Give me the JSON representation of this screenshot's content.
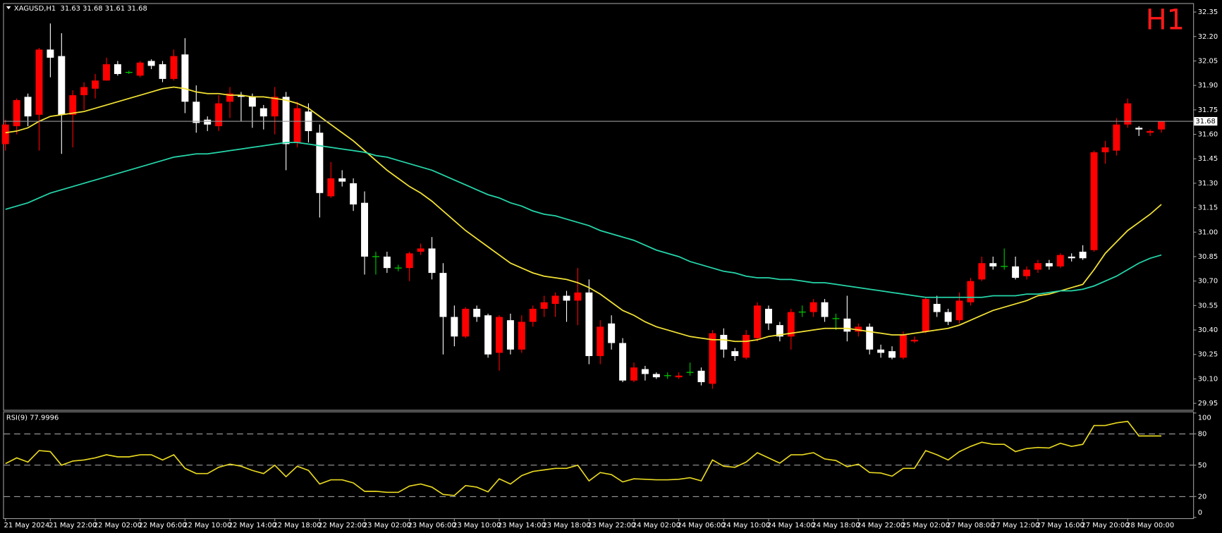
{
  "chart_data": [
    {
      "type": "candlestick",
      "title": "XAGUSD,H1  31.63 31.68 31.61 31.68",
      "annotation": "H1",
      "categories": [
        "21 May 2024",
        null,
        null,
        null,
        "21 May 22:00",
        null,
        null,
        null,
        "22 May 02:00",
        null,
        null,
        null,
        "22 May 06:00",
        null,
        null,
        null,
        "22 May 10:00",
        null,
        null,
        null,
        "22 May 14:00",
        null,
        null,
        null,
        "22 May 18:00",
        null,
        null,
        null,
        "22 May 22:00",
        null,
        null,
        null,
        "23 May 02:00",
        null,
        null,
        null,
        "23 May 06:00",
        null,
        null,
        null,
        "23 May 10:00",
        null,
        null,
        null,
        "23 May 14:00",
        null,
        null,
        null,
        "23 May 18:00",
        null,
        null,
        null,
        "23 May 22:00",
        null,
        null,
        null,
        "24 May 02:00",
        null,
        null,
        null,
        "24 May 06:00",
        null,
        null,
        null,
        "24 May 10:00",
        null,
        null,
        null,
        "24 May 14:00",
        null,
        null,
        null,
        "24 May 18:00",
        null,
        null,
        null,
        "24 May 22:00",
        null,
        null,
        null,
        "25 May 02:00",
        null,
        null,
        null,
        "27 May 08:00",
        null,
        null,
        null,
        "27 May 12:00",
        null,
        null,
        null,
        "27 May 16:00",
        null,
        null,
        null,
        "27 May 20:00",
        null,
        null,
        null,
        "28 May 00:00",
        null,
        null,
        null
      ],
      "open": [
        31.54,
        31.65,
        31.83,
        31.72,
        32.12,
        32.08,
        31.72,
        31.84,
        31.88,
        31.93,
        32.03,
        31.98,
        31.96,
        32.05,
        32.03,
        31.94,
        32.09,
        31.8,
        31.69,
        31.65,
        31.8,
        31.84,
        31.83,
        31.76,
        31.71,
        31.83,
        31.55,
        31.74,
        31.61,
        31.22,
        31.33,
        31.3,
        31.18,
        30.85,
        30.85,
        30.78,
        30.78,
        30.88,
        30.9,
        30.75,
        30.48,
        30.36,
        30.53,
        30.49,
        30.26,
        30.46,
        30.28,
        30.45,
        30.53,
        30.56,
        30.61,
        30.58,
        30.63,
        30.24,
        30.44,
        30.32,
        30.09,
        30.16,
        30.13,
        30.12,
        30.11,
        30.14,
        30.15,
        30.07,
        30.37,
        30.27,
        30.23,
        30.35,
        30.53,
        30.43,
        30.36,
        30.51,
        30.51,
        30.57,
        30.47,
        30.47,
        30.39,
        30.42,
        30.28,
        30.27,
        30.23,
        30.33,
        30.39,
        30.56,
        30.51,
        30.46,
        30.57,
        30.71,
        30.81,
        30.79,
        30.79,
        30.73,
        30.77,
        30.81,
        30.79,
        30.85,
        30.88,
        30.89,
        31.49,
        31.5,
        31.66,
        31.64,
        31.61,
        31.63
      ],
      "high": [
        31.69,
        31.82,
        31.85,
        32.13,
        32.28,
        32.22,
        31.87,
        31.92,
        31.97,
        32.07,
        32.05,
        31.99,
        32.05,
        32.06,
        32.05,
        32.12,
        32.19,
        31.9,
        31.71,
        31.84,
        31.89,
        31.86,
        31.85,
        31.78,
        31.89,
        31.86,
        31.8,
        31.79,
        31.66,
        31.43,
        31.38,
        31.33,
        31.25,
        30.88,
        30.88,
        30.8,
        30.88,
        30.93,
        30.97,
        30.81,
        30.55,
        30.54,
        30.55,
        30.5,
        30.49,
        30.5,
        30.49,
        30.55,
        30.61,
        30.63,
        30.64,
        30.78,
        30.71,
        30.46,
        30.49,
        30.35,
        30.2,
        30.18,
        30.14,
        30.14,
        30.14,
        30.2,
        30.17,
        30.4,
        30.41,
        30.29,
        30.4,
        30.57,
        30.55,
        30.45,
        30.53,
        30.55,
        30.59,
        30.59,
        30.5,
        30.61,
        30.44,
        30.44,
        30.31,
        30.3,
        30.39,
        30.36,
        30.6,
        30.61,
        30.53,
        30.63,
        30.72,
        30.85,
        30.85,
        30.9,
        30.85,
        30.79,
        30.83,
        30.83,
        30.87,
        30.87,
        30.92,
        31.5,
        31.56,
        31.7,
        31.82,
        31.65,
        31.63,
        31.68
      ],
      "low": [
        31.5,
        31.6,
        31.65,
        31.5,
        31.95,
        31.48,
        31.52,
        31.75,
        31.82,
        31.93,
        31.96,
        31.97,
        31.95,
        32.0,
        31.92,
        31.93,
        31.73,
        31.61,
        31.62,
        31.62,
        31.7,
        31.68,
        31.64,
        31.63,
        31.6,
        31.38,
        31.52,
        31.55,
        31.09,
        31.21,
        31.28,
        31.13,
        30.74,
        30.74,
        30.75,
        30.76,
        30.7,
        30.86,
        30.71,
        30.25,
        30.3,
        30.35,
        30.45,
        30.23,
        30.15,
        30.25,
        30.26,
        30.42,
        30.48,
        30.48,
        30.45,
        30.43,
        30.19,
        30.19,
        30.28,
        30.08,
        30.08,
        30.09,
        30.1,
        30.1,
        30.1,
        30.12,
        30.06,
        30.04,
        30.23,
        30.21,
        30.22,
        30.33,
        30.4,
        30.33,
        30.28,
        30.48,
        30.48,
        30.45,
        30.4,
        30.33,
        30.36,
        30.25,
        30.23,
        30.22,
        30.22,
        30.32,
        30.38,
        30.48,
        30.43,
        30.44,
        30.55,
        30.7,
        30.77,
        30.77,
        30.71,
        30.71,
        30.75,
        30.77,
        30.78,
        30.82,
        30.83,
        30.88,
        31.42,
        31.47,
        31.64,
        31.59,
        31.59,
        31.61
      ],
      "close": [
        31.66,
        31.81,
        31.71,
        32.12,
        32.07,
        31.72,
        31.84,
        31.89,
        31.93,
        32.03,
        31.97,
        31.98,
        32.04,
        32.02,
        31.94,
        32.08,
        31.8,
        31.67,
        31.66,
        31.79,
        31.85,
        31.83,
        31.77,
        31.71,
        31.83,
        31.54,
        31.76,
        31.62,
        31.24,
        31.33,
        31.31,
        31.17,
        30.85,
        30.85,
        30.78,
        30.78,
        30.87,
        30.9,
        30.75,
        30.48,
        30.36,
        30.53,
        30.48,
        30.25,
        30.48,
        30.28,
        30.45,
        30.53,
        30.57,
        30.61,
        30.58,
        30.63,
        30.24,
        30.42,
        30.32,
        30.09,
        30.17,
        30.13,
        30.11,
        30.12,
        30.12,
        30.14,
        30.08,
        30.38,
        30.28,
        30.24,
        30.37,
        30.55,
        30.44,
        30.36,
        30.51,
        30.51,
        30.57,
        30.48,
        30.47,
        30.39,
        30.42,
        30.28,
        30.26,
        30.23,
        30.37,
        30.34,
        30.59,
        30.51,
        30.45,
        30.58,
        30.7,
        30.81,
        30.79,
        30.79,
        30.72,
        30.77,
        30.81,
        30.79,
        30.86,
        30.84,
        30.84,
        31.49,
        31.52,
        31.66,
        31.79,
        31.63,
        31.62,
        31.68
      ],
      "up_color": "#ff0000",
      "down_color": "#ffffff",
      "doji_color": "#00c800",
      "lines": [
        {
          "color": "#f2e234",
          "values": [
            31.61,
            31.62,
            31.64,
            31.68,
            31.71,
            31.72,
            31.73,
            31.74,
            31.76,
            31.78,
            31.8,
            31.82,
            31.84,
            31.86,
            31.88,
            31.89,
            31.88,
            31.86,
            31.85,
            31.85,
            31.84,
            31.84,
            31.83,
            31.83,
            31.82,
            31.81,
            31.79,
            31.76,
            31.71,
            31.66,
            31.61,
            31.56,
            31.5,
            31.44,
            31.38,
            31.33,
            31.28,
            31.24,
            31.19,
            31.13,
            31.07,
            31.01,
            30.96,
            30.91,
            30.86,
            30.81,
            30.78,
            30.75,
            30.73,
            30.72,
            30.71,
            30.69,
            30.66,
            30.62,
            30.57,
            30.52,
            30.49,
            30.45,
            30.42,
            30.4,
            30.38,
            30.36,
            30.35,
            30.34,
            30.34,
            30.33,
            30.33,
            30.34,
            30.36,
            30.37,
            30.38,
            30.39,
            30.4,
            30.41,
            30.41,
            30.41,
            30.4,
            30.39,
            30.38,
            30.37,
            30.37,
            30.38,
            30.39,
            30.4,
            30.41,
            30.43,
            30.46,
            30.49,
            30.52,
            30.54,
            30.56,
            30.58,
            30.61,
            30.62,
            30.64,
            30.66,
            30.68,
            30.77,
            30.87,
            30.94,
            31.01,
            31.06,
            31.11,
            31.17
          ]
        },
        {
          "color": "#25d6aa",
          "values": [
            31.14,
            31.16,
            31.18,
            31.21,
            31.24,
            31.26,
            31.28,
            31.3,
            31.32,
            31.34,
            31.36,
            31.38,
            31.4,
            31.42,
            31.44,
            31.46,
            31.47,
            31.48,
            31.48,
            31.49,
            31.5,
            31.51,
            31.52,
            31.53,
            31.54,
            31.55,
            31.55,
            31.54,
            31.53,
            31.52,
            31.51,
            31.5,
            31.49,
            31.47,
            31.46,
            31.44,
            31.42,
            31.4,
            31.38,
            31.35,
            31.32,
            31.29,
            31.26,
            31.23,
            31.21,
            31.18,
            31.16,
            31.13,
            31.11,
            31.1,
            31.08,
            31.06,
            31.04,
            31.01,
            30.99,
            30.97,
            30.95,
            30.92,
            30.89,
            30.87,
            30.85,
            30.82,
            30.8,
            30.78,
            30.76,
            30.75,
            30.73,
            30.72,
            30.72,
            30.71,
            30.71,
            30.7,
            30.69,
            30.69,
            30.68,
            30.67,
            30.66,
            30.65,
            30.64,
            30.63,
            30.62,
            30.61,
            30.6,
            30.6,
            30.6,
            30.6,
            30.6,
            30.6,
            30.61,
            30.61,
            30.61,
            30.62,
            30.62,
            30.63,
            30.64,
            30.64,
            30.65,
            30.67,
            30.7,
            30.73,
            30.77,
            30.81,
            30.84,
            30.86
          ]
        }
      ],
      "last_price": 31.68,
      "ylim": [
        29.91,
        32.4
      ],
      "yticks": [
        29.95,
        {
          "value": 30.1,
          "label": "30.10"
        },
        30.25,
        {
          "value": 30.4,
          "label": "30.40"
        },
        30.55,
        {
          "value": 30.7,
          "label": "30.70"
        },
        30.85,
        {
          "value": 31.0,
          "label": "31.00"
        },
        31.15,
        {
          "value": 31.3,
          "label": "31.30"
        },
        31.45,
        {
          "value": 31.6,
          "label": "31.60"
        },
        31.75,
        {
          "value": 31.9,
          "label": "31.90"
        },
        32.05,
        {
          "value": 32.2,
          "label": "32.20"
        },
        32.35
      ]
    },
    {
      "type": "line",
      "title": "RSI(9) 77.9996",
      "color": "#e8d820",
      "values": [
        51.5,
        57,
        53,
        64,
        63,
        50,
        54,
        55,
        57,
        60,
        58,
        58,
        60,
        60,
        55,
        60,
        47,
        42,
        42,
        48,
        51,
        49,
        45,
        42,
        50,
        39,
        49,
        45,
        32,
        36,
        36,
        33,
        25,
        25,
        24,
        24,
        30,
        32,
        29,
        22,
        21,
        30.5,
        29,
        24.5,
        37,
        32,
        40,
        44,
        45.5,
        47,
        47,
        50,
        35,
        43,
        41,
        34,
        37,
        36.5,
        36,
        36,
        36.5,
        38,
        35,
        55,
        49,
        48,
        53,
        62,
        57,
        52,
        60,
        60,
        62,
        56,
        54.5,
        48.5,
        51,
        43,
        42.5,
        39.5,
        47,
        47,
        64,
        60,
        55,
        63,
        68,
        72,
        70,
        70,
        63,
        66,
        67,
        66.5,
        71,
        68,
        70,
        88,
        88,
        90.5,
        92,
        78,
        78,
        77.9996
      ],
      "ylim": [
        0,
        100
      ],
      "yticks": [
        0,
        20,
        50,
        80,
        100
      ]
    }
  ]
}
